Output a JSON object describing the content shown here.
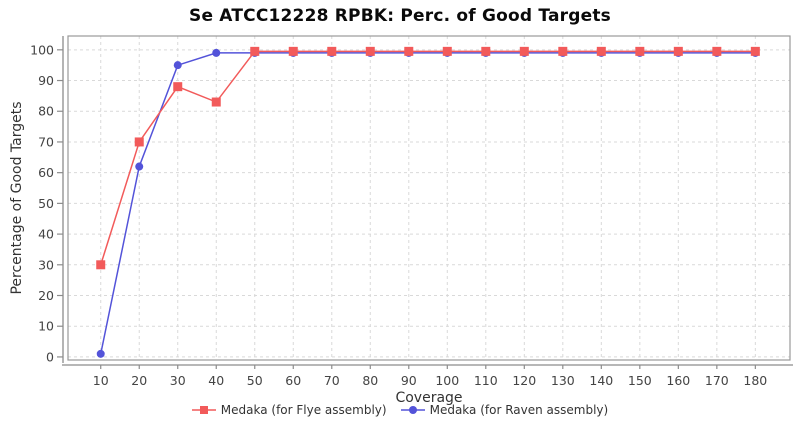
{
  "chart_data": {
    "type": "line",
    "title": "Se ATCC12228 RPBK: Perc. of Good Targets",
    "xlabel": "Coverage",
    "ylabel": "Percentage of Good Targets",
    "x": [
      10,
      20,
      30,
      40,
      50,
      60,
      70,
      80,
      90,
      100,
      110,
      120,
      130,
      140,
      150,
      160,
      170,
      180
    ],
    "xticks": [
      10,
      20,
      30,
      40,
      50,
      60,
      70,
      80,
      90,
      100,
      110,
      120,
      130,
      140,
      150,
      160,
      170,
      180
    ],
    "yticks": [
      0,
      10,
      20,
      30,
      40,
      50,
      60,
      70,
      80,
      90,
      100
    ],
    "xlim": [
      1.5,
      189
    ],
    "ylim": [
      -1,
      104.5
    ],
    "grid": true,
    "grid_style": "dashed",
    "legend_position": "bottom",
    "series": [
      {
        "name": "Medaka (for Flye assembly)",
        "color": "#f25a5a",
        "marker": "square",
        "values": [
          30,
          70,
          88,
          83,
          99.5,
          99.5,
          99.5,
          99.5,
          99.5,
          99.5,
          99.5,
          99.5,
          99.5,
          99.5,
          99.5,
          99.5,
          99.5,
          99.5
        ]
      },
      {
        "name": "Medaka (for Raven assembly)",
        "color": "#5353d9",
        "marker": "circle",
        "values": [
          1,
          62,
          95,
          99,
          99,
          99,
          99,
          99,
          99,
          99,
          99,
          99,
          99,
          99,
          99,
          99,
          99,
          99
        ]
      }
    ],
    "colors": {
      "grid": "#d9d9d9",
      "plot_border": "#999999",
      "axis_line": "#8c8c8c",
      "tick_text": "#444444",
      "title_text": "#0a0a0a",
      "background": "#ffffff"
    }
  }
}
